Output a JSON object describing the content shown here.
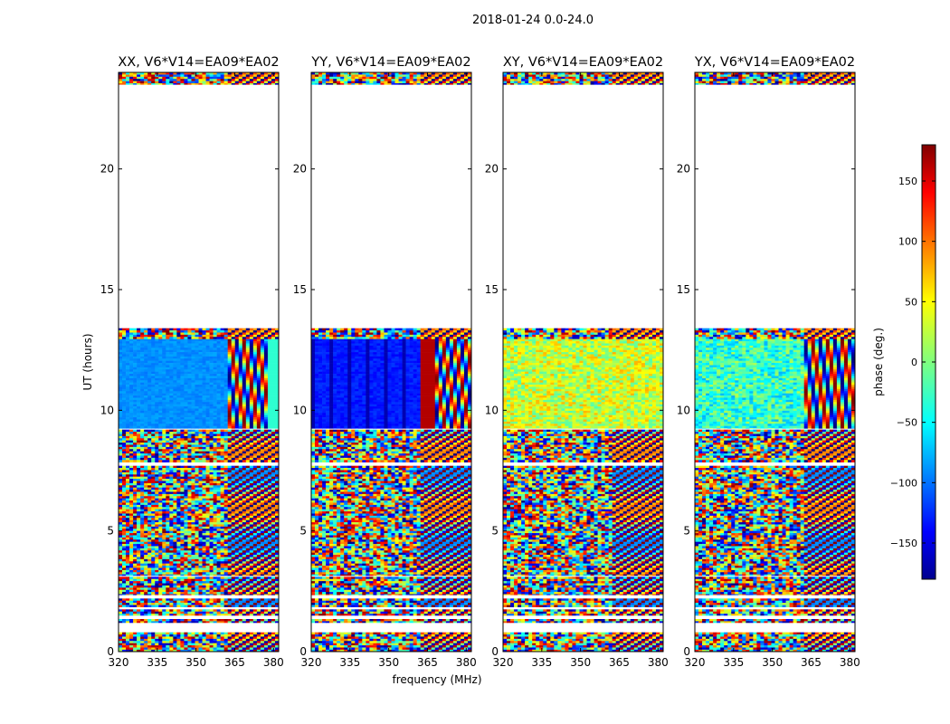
{
  "figure_title": "2018-01-24 0.0-24.0",
  "chart_data": {
    "type": "heatmap",
    "xlabel": "frequency (MHz)",
    "ylabel": "UT (hours)",
    "xlim": [
      320,
      382
    ],
    "ylim": [
      0,
      24
    ],
    "xticks": [
      320,
      335,
      350,
      365,
      380
    ],
    "yticks": [
      0,
      5,
      10,
      15,
      20
    ],
    "panels": [
      {
        "title": "XX, V6*V14=EA09*EA02",
        "pol": "XX"
      },
      {
        "title": "YY, V6*V14=EA09*EA02",
        "pol": "YY"
      },
      {
        "title": "XY, V6*V14=EA09*EA02",
        "pol": "XY"
      },
      {
        "title": "YX, V6*V14=EA09*EA02",
        "pol": "YX"
      }
    ],
    "data_coverage_hours": [
      [
        0.0,
        0.8
      ],
      [
        1.2,
        1.35
      ],
      [
        1.5,
        1.75
      ],
      [
        1.85,
        2.2
      ],
      [
        2.35,
        3.1
      ],
      [
        3.15,
        7.7
      ],
      [
        7.85,
        9.2
      ],
      [
        9.25,
        13.4
      ],
      [
        23.5,
        24.0
      ]
    ],
    "colorbar": {
      "label": "phase (deg.)",
      "range": [
        -180,
        180
      ],
      "ticks": [
        -150,
        -100,
        -50,
        0,
        50,
        100,
        150
      ],
      "colormap": "jet"
    }
  }
}
